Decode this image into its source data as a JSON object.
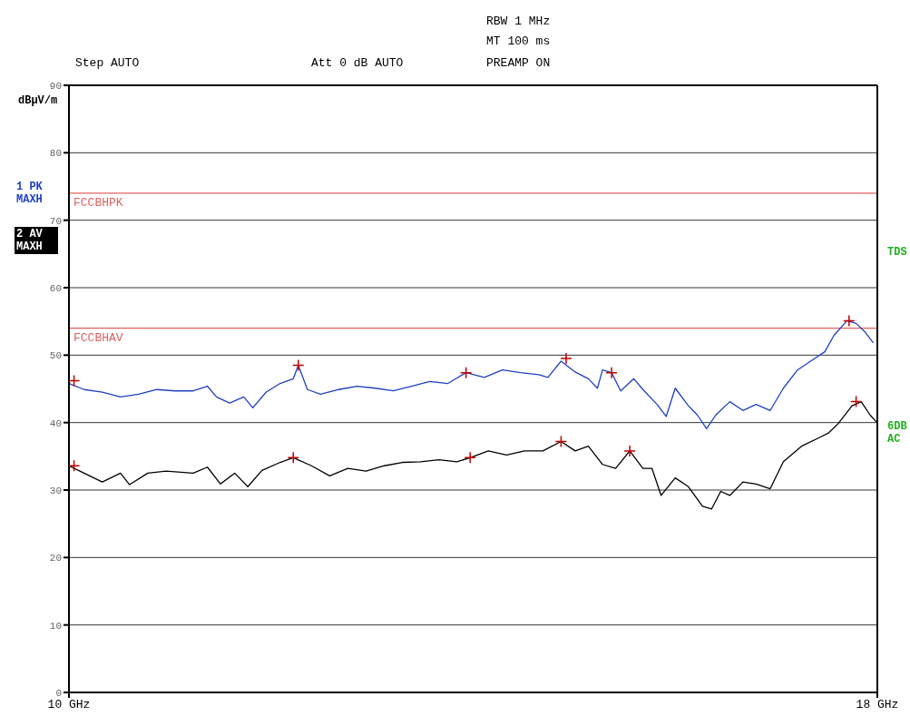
{
  "chart_data": {
    "type": "line",
    "ylabel": "dBµV/m",
    "xlim": [
      10,
      18
    ],
    "xticks": [
      {
        "value": 10,
        "label": "10 GHz"
      },
      {
        "value": 18,
        "label": "18 GHz"
      }
    ],
    "ylim": [
      0,
      90
    ],
    "yticks": [
      0,
      10,
      20,
      30,
      40,
      50,
      60,
      70,
      80,
      90
    ],
    "grid": "y",
    "legend": "left",
    "marker": "none",
    "line_style": "solid",
    "annotations": [
      "RBW 1 MHz",
      "MT 100 ms",
      "Step AUTO",
      "Att 0 dB AUTO",
      "PREAMP ON",
      "TDS",
      "6DB AC"
    ],
    "ref_lines": [
      {
        "axis": "y",
        "value": 74,
        "label": "FCCBHPK",
        "color": "#e06060"
      },
      {
        "axis": "y",
        "value": 54,
        "label": "FCCBHAV",
        "color": "#e06060"
      }
    ],
    "series": [
      {
        "name": "1 PK MAXH",
        "color": "#2040c0",
        "x": [
          10.0,
          10.15,
          10.33,
          10.51,
          10.69,
          10.87,
          11.05,
          11.23,
          11.37,
          11.46,
          11.59,
          11.73,
          11.82,
          11.95,
          12.09,
          12.22,
          12.27,
          12.36,
          12.49,
          12.67,
          12.85,
          13.03,
          13.21,
          13.39,
          13.57,
          13.75,
          13.93,
          14.11,
          14.29,
          14.47,
          14.65,
          14.74,
          14.87,
          15.01,
          15.14,
          15.23,
          15.28,
          15.37,
          15.46,
          15.59,
          15.68,
          15.82,
          15.91,
          16.0,
          16.13,
          16.22,
          16.31,
          16.4,
          16.54,
          16.67,
          16.8,
          16.94,
          17.07,
          17.21,
          17.34,
          17.48,
          17.57,
          17.7,
          17.79,
          17.88,
          17.96
        ],
        "values": [
          45.8,
          44.9,
          44.5,
          43.8,
          44.2,
          44.9,
          44.7,
          44.7,
          45.4,
          43.8,
          42.9,
          43.8,
          42.2,
          44.5,
          45.8,
          46.5,
          48.5,
          44.9,
          44.2,
          44.9,
          45.4,
          45.1,
          44.7,
          45.4,
          46.1,
          45.8,
          47.4,
          46.7,
          47.8,
          47.4,
          47.1,
          46.7,
          49.1,
          47.5,
          46.5,
          45.1,
          47.8,
          47.4,
          44.7,
          46.5,
          44.9,
          42.7,
          40.9,
          45.1,
          42.5,
          41.1,
          39.1,
          41.1,
          43.1,
          41.8,
          42.7,
          41.8,
          45.1,
          47.8,
          49.1,
          50.5,
          52.9,
          55.1,
          54.7,
          53.4,
          51.8
        ]
      },
      {
        "name": "2 AV MAXH",
        "color": "#000000",
        "x": [
          10.0,
          10.15,
          10.33,
          10.51,
          10.6,
          10.78,
          10.96,
          11.23,
          11.37,
          11.5,
          11.64,
          11.77,
          11.91,
          12.09,
          12.22,
          12.4,
          12.58,
          12.76,
          12.94,
          13.12,
          13.3,
          13.48,
          13.66,
          13.84,
          13.97,
          14.15,
          14.33,
          14.51,
          14.69,
          14.87,
          15.01,
          15.14,
          15.28,
          15.41,
          15.55,
          15.68,
          15.77,
          15.86,
          16.0,
          16.13,
          16.27,
          16.36,
          16.45,
          16.54,
          16.67,
          16.8,
          16.94,
          17.07,
          17.25,
          17.43,
          17.52,
          17.61,
          17.75,
          17.84,
          17.93,
          17.99
        ],
        "values": [
          33.6,
          32.5,
          31.2,
          32.5,
          30.8,
          32.5,
          32.8,
          32.5,
          33.4,
          30.9,
          32.5,
          30.5,
          32.9,
          34.1,
          34.8,
          33.6,
          32.1,
          33.2,
          32.8,
          33.6,
          34.1,
          34.2,
          34.5,
          34.2,
          34.8,
          35.8,
          35.2,
          35.8,
          35.8,
          37.2,
          35.8,
          36.5,
          33.8,
          33.2,
          35.8,
          33.2,
          33.2,
          29.2,
          31.8,
          30.5,
          27.6,
          27.2,
          29.8,
          29.2,
          31.2,
          30.9,
          30.2,
          34.2,
          36.5,
          37.8,
          38.5,
          39.8,
          42.5,
          43.1,
          41.1,
          40.1
        ]
      },
      {
        "type": "scatter",
        "marker": "cross",
        "color": "#c00000",
        "x": [
          10.05,
          12.27,
          13.93,
          14.92,
          15.37,
          17.72
        ],
        "values": [
          46.2,
          48.5,
          47.4,
          49.5,
          47.4,
          55.1
        ]
      },
      {
        "type": "scatter",
        "marker": "cross",
        "color": "#c00000",
        "x": [
          10.05,
          12.22,
          13.97,
          14.87,
          15.55,
          17.79
        ],
        "values": [
          33.6,
          34.8,
          34.8,
          37.2,
          35.8,
          43.1
        ]
      }
    ]
  }
}
